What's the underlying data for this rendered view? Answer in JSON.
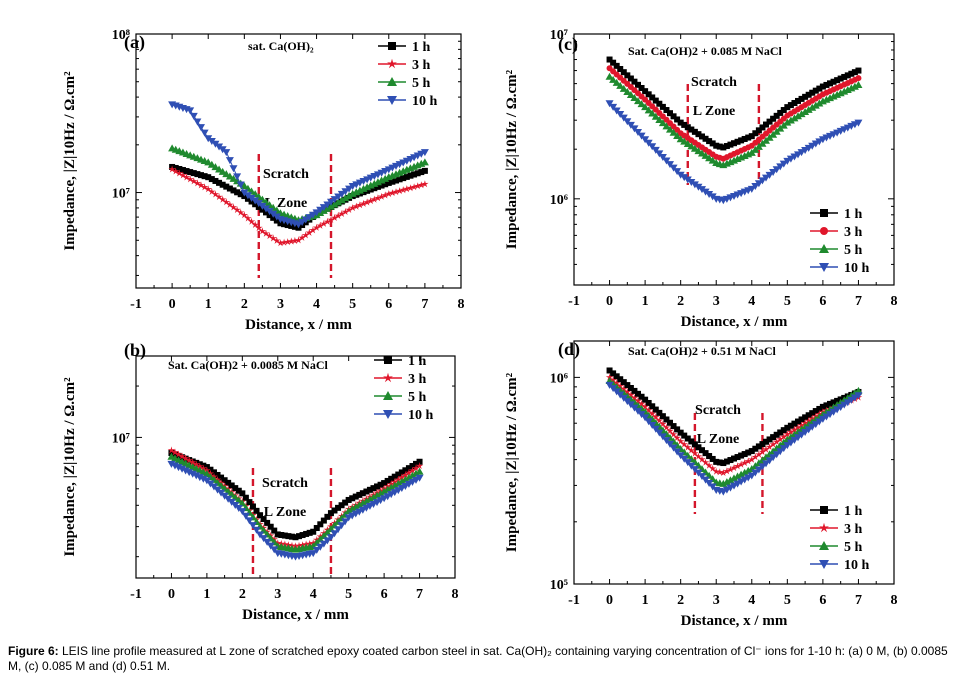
{
  "figure": {
    "caption_label": "Figure 6:",
    "caption_text": " LEIS line profile measured at L zone of scratched epoxy coated carbon steel in sat. Ca(OH)₂ containing varying concentration of Cl⁻ ions for 1-10 h: (a) 0 M, (b) 0.0085 M, (c) 0.085 M and (d) 0.51 M."
  },
  "chart_data": [
    {
      "type": "line",
      "panel": "(a)",
      "title": "sat. Ca(OH)₂",
      "xlabel": "Distance, x / mm",
      "ylabel": "Impedance, |Z|10Hz / Ω.cm²",
      "xlim": [
        -1,
        8
      ],
      "xticks": [
        "-1",
        "0",
        "1",
        "2",
        "3",
        "4",
        "5",
        "6",
        "7",
        "8"
      ],
      "ylog": true,
      "ylim": [
        2500000,
        100000000
      ],
      "yticks": [
        {
          "v": 10000000,
          "label": "10⁷"
        },
        {
          "v": 100000000,
          "label": "10⁸"
        }
      ],
      "legend_position": "top-right",
      "zone_label": [
        "Scratch",
        "L Zone"
      ],
      "zone_lines": [
        2.4,
        4.4
      ],
      "series": [
        {
          "name": "1 h",
          "marker": "square",
          "color": "#000000",
          "x": [
            0,
            1,
            2,
            3,
            3.5,
            4,
            5,
            6,
            7
          ],
          "values": [
            14500000,
            12500000,
            9500000,
            6400000,
            6000000,
            7300000,
            9500000,
            11500000,
            13700000
          ]
        },
        {
          "name": "3 h",
          "marker": "star",
          "color": "#e0162b",
          "x": [
            0,
            1,
            2,
            2.5,
            3,
            3.5,
            4,
            5,
            6,
            7
          ],
          "values": [
            14000000,
            10500000,
            7200000,
            5700000,
            4800000,
            5000000,
            6000000,
            8000000,
            9800000,
            11300000
          ]
        },
        {
          "name": "5 h",
          "marker": "triangle-up",
          "color": "#1f8a2e",
          "x": [
            0,
            1,
            2,
            3,
            3.5,
            4,
            5,
            6,
            7
          ],
          "values": [
            19000000,
            15500000,
            11000000,
            7400000,
            6700000,
            7200000,
            9800000,
            12500000,
            15500000
          ]
        },
        {
          "name": "10 h",
          "marker": "triangle-down",
          "color": "#2f4fb4",
          "x": [
            0,
            0.5,
            1,
            1.5,
            2,
            3,
            3.5,
            4,
            5,
            6,
            7
          ],
          "values": [
            36000000,
            33000000,
            22000000,
            18000000,
            10000000,
            6800000,
            6300000,
            7500000,
            11000000,
            14000000,
            18000000
          ]
        }
      ]
    },
    {
      "type": "line",
      "panel": "(b)",
      "title": "Sat. Ca(OH)2 + 0.0085 M NaCl",
      "xlabel": "Distance, x / mm",
      "ylabel": "Impedance, |Z|10Hz / Ω.cm²",
      "xlim": [
        -1,
        8
      ],
      "xticks": [
        "-1",
        "0",
        "1",
        "2",
        "3",
        "4",
        "5",
        "6",
        "7",
        "8"
      ],
      "ylog": true,
      "ylim": [
        1500000,
        30000000
      ],
      "yticks": [
        {
          "v": 10000000,
          "label": "10⁷"
        }
      ],
      "legend_position": "top-right",
      "zone_label": [
        "Scratch",
        "L Zone"
      ],
      "zone_lines": [
        2.3,
        4.5
      ],
      "series": [
        {
          "name": "1 h",
          "marker": "square",
          "color": "#000000",
          "x": [
            0,
            1,
            2,
            2.5,
            3,
            3.5,
            4,
            4.5,
            5,
            6,
            7
          ],
          "values": [
            8100000,
            6700000,
            4700000,
            3500000,
            2700000,
            2600000,
            2800000,
            3600000,
            4300000,
            5400000,
            7200000
          ]
        },
        {
          "name": "3 h",
          "marker": "star",
          "color": "#e0162b",
          "x": [
            0,
            1,
            2,
            2.5,
            3,
            3.5,
            4,
            4.5,
            5,
            6,
            7
          ],
          "values": [
            8400000,
            6400000,
            4200000,
            3100000,
            2400000,
            2300000,
            2400000,
            3000000,
            3800000,
            5000000,
            6800000
          ]
        },
        {
          "name": "5 h",
          "marker": "triangle-up",
          "color": "#1f8a2e",
          "x": [
            0,
            1,
            2,
            2.5,
            3,
            3.5,
            4,
            4.5,
            5,
            6,
            7
          ],
          "values": [
            7700000,
            6100000,
            4100000,
            3000000,
            2300000,
            2200000,
            2300000,
            2900000,
            3700000,
            4800000,
            6300000
          ]
        },
        {
          "name": "10 h",
          "marker": "triangle-down",
          "color": "#2f4fb4",
          "x": [
            0,
            1,
            2,
            2.5,
            3,
            3.5,
            4,
            4.5,
            5,
            6,
            7
          ],
          "values": [
            7000000,
            5600000,
            3700000,
            2700000,
            2100000,
            2000000,
            2100000,
            2600000,
            3400000,
            4400000,
            5800000
          ]
        }
      ]
    },
    {
      "type": "line",
      "panel": "(c)",
      "title": "Sat. Ca(OH)2 + 0.085 M NaCl",
      "xlabel": "Distance, x / mm",
      "ylabel": "Impedance, |Z|10Hz / Ω.cm²",
      "xlim": [
        -1,
        8
      ],
      "xticks": [
        "-1",
        "0",
        "1",
        "2",
        "3",
        "4",
        "5",
        "6",
        "7",
        "8"
      ],
      "ylog": true,
      "ylim": [
        300000,
        10000000
      ],
      "yticks": [
        {
          "v": 1000000,
          "label": "10⁶"
        },
        {
          "v": 10000000,
          "label": "10⁷"
        }
      ],
      "legend_position": "bottom-right",
      "zone_label": [
        "Scratch",
        "L Zone"
      ],
      "zone_lines": [
        2.2,
        4.2
      ],
      "series": [
        {
          "name": "1 h",
          "marker": "square",
          "color": "#000000",
          "x": [
            0,
            1,
            2,
            3,
            3.2,
            4,
            5,
            6,
            7
          ],
          "values": [
            7000000,
            4500000,
            2900000,
            2100000,
            2050000,
            2400000,
            3600000,
            4800000,
            6000000
          ]
        },
        {
          "name": "3 h",
          "marker": "circle",
          "color": "#e0162b",
          "x": [
            0,
            1,
            2,
            3,
            3.2,
            4,
            5,
            6,
            7
          ],
          "values": [
            6200000,
            4000000,
            2500000,
            1800000,
            1750000,
            2100000,
            3200000,
            4300000,
            5400000
          ]
        },
        {
          "name": "5 h",
          "marker": "triangle-up",
          "color": "#1f8a2e",
          "x": [
            0,
            1,
            2,
            3,
            3.2,
            4,
            5,
            6,
            7
          ],
          "values": [
            5500000,
            3600000,
            2300000,
            1650000,
            1600000,
            1900000,
            2900000,
            3900000,
            4900000
          ]
        },
        {
          "name": "10 h",
          "marker": "triangle-down",
          "color": "#2f4fb4",
          "x": [
            0,
            1,
            2,
            3,
            3.2,
            4,
            5,
            6,
            7
          ],
          "values": [
            3800000,
            2300000,
            1400000,
            1000000,
            980000,
            1150000,
            1700000,
            2300000,
            2900000
          ]
        }
      ]
    },
    {
      "type": "line",
      "panel": "(d)",
      "title": "Sat. Ca(OH)2 + 0.51 M NaCl",
      "xlabel": "Distance, x / mm",
      "ylabel": "Impedance, |Z|10Hz / Ω.cm²",
      "xlim": [
        -1,
        8
      ],
      "xticks": [
        "-1",
        "0",
        "1",
        "2",
        "3",
        "4",
        "5",
        "6",
        "7",
        "8"
      ],
      "ylog": true,
      "ylim": [
        100000,
        1500000
      ],
      "yticks": [
        {
          "v": 100000,
          "label": "10⁵"
        },
        {
          "v": 1000000,
          "label": "10⁶"
        }
      ],
      "legend_position": "bottom-right",
      "zone_label": [
        "Scratch",
        "L Zone"
      ],
      "zone_lines": [
        2.4,
        4.3
      ],
      "series": [
        {
          "name": "1 h",
          "marker": "square",
          "color": "#000000",
          "x": [
            0,
            1,
            2,
            3,
            3.2,
            4,
            5,
            6,
            7
          ],
          "values": [
            1080000,
            780000,
            540000,
            390000,
            385000,
            440000,
            570000,
            720000,
            850000
          ]
        },
        {
          "name": "3 h",
          "marker": "star",
          "color": "#e0162b",
          "x": [
            0,
            1,
            2,
            3,
            3.2,
            4,
            5,
            6,
            7
          ],
          "values": [
            1000000,
            720000,
            490000,
            350000,
            345000,
            400000,
            530000,
            680000,
            800000
          ]
        },
        {
          "name": "5 h",
          "marker": "triangle-up",
          "color": "#1f8a2e",
          "x": [
            0,
            1,
            2,
            3,
            3.2,
            4,
            5,
            6,
            7
          ],
          "values": [
            960000,
            680000,
            450000,
            310000,
            305000,
            360000,
            500000,
            660000,
            860000
          ]
        },
        {
          "name": "10 h",
          "marker": "triangle-down",
          "color": "#2f4fb4",
          "x": [
            0,
            1,
            2,
            3,
            3.2,
            4,
            5,
            6,
            7
          ],
          "values": [
            920000,
            640000,
            420000,
            285000,
            280000,
            335000,
            470000,
            630000,
            820000
          ]
        }
      ]
    }
  ]
}
